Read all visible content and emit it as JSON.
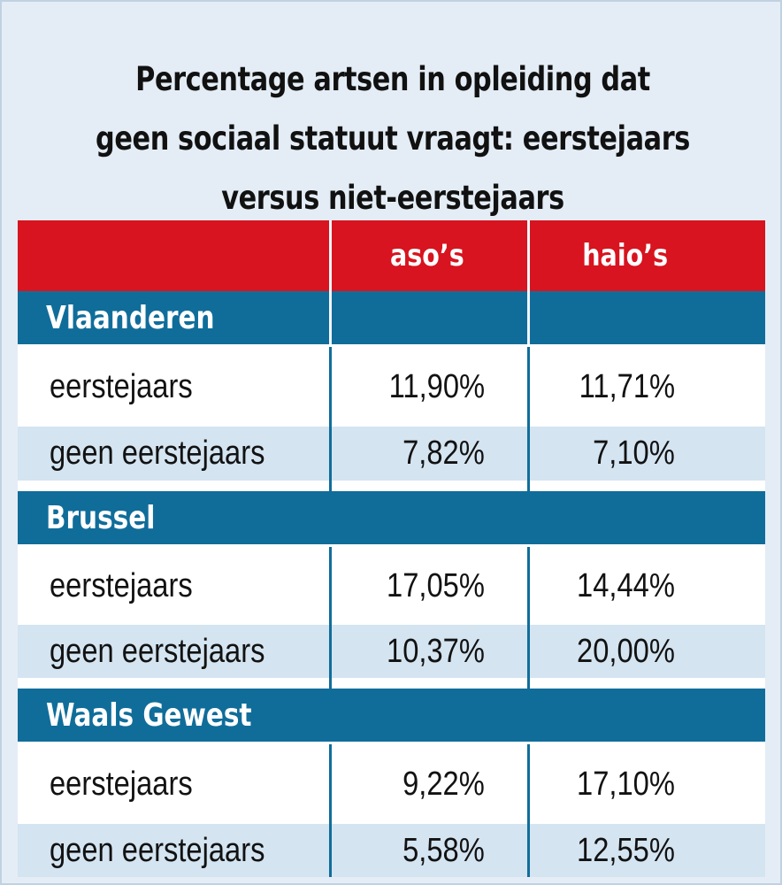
{
  "chart_data": {
    "type": "table",
    "title": "Percentage artsen in opleiding dat geen sociaal statuut vraagt: eerstejaars versus niet-eerstejaars",
    "title_lines": [
      "Percentage artsen in opleiding dat",
      "geen sociaal statuut vraagt: eerstejaars",
      "versus niet-eerstejaars"
    ],
    "columns": [
      "",
      "aso’s",
      "haio’s"
    ],
    "sections": [
      {
        "region": "Vlaanderen",
        "rows": [
          {
            "label": "eerstejaars",
            "values": [
              "11,90%",
              "11,71%"
            ]
          },
          {
            "label": "geen eerstejaars",
            "values": [
              "7,82%",
              "7,10%"
            ]
          }
        ]
      },
      {
        "region": "Brussel",
        "rows": [
          {
            "label": "eerstejaars",
            "values": [
              "17,05%",
              "14,44%"
            ]
          },
          {
            "label": "geen eerstejaars",
            "values": [
              "10,37%",
              "20,00%"
            ]
          }
        ]
      },
      {
        "region": "Waals Gewest",
        "rows": [
          {
            "label": "eerstejaars",
            "values": [
              "9,22%",
              "17,10%"
            ]
          },
          {
            "label": "geen eerstejaars",
            "values": [
              "5,58%",
              "12,55%"
            ]
          }
        ]
      }
    ],
    "colors": {
      "header": "#d7141f",
      "region": "#106d9a",
      "row_alt": "#d4e4f1",
      "background": "#e4edf5"
    }
  }
}
